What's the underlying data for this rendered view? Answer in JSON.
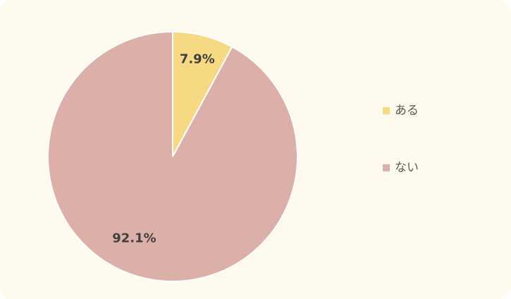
{
  "chart_data": {
    "type": "pie",
    "categories": [
      "ある",
      "ない"
    ],
    "values": [
      7.9,
      92.1
    ],
    "value_labels": [
      "7.9%",
      "92.1%"
    ],
    "colors": [
      "#f7d983",
      "#dcb0a8"
    ],
    "legend": "right"
  }
}
